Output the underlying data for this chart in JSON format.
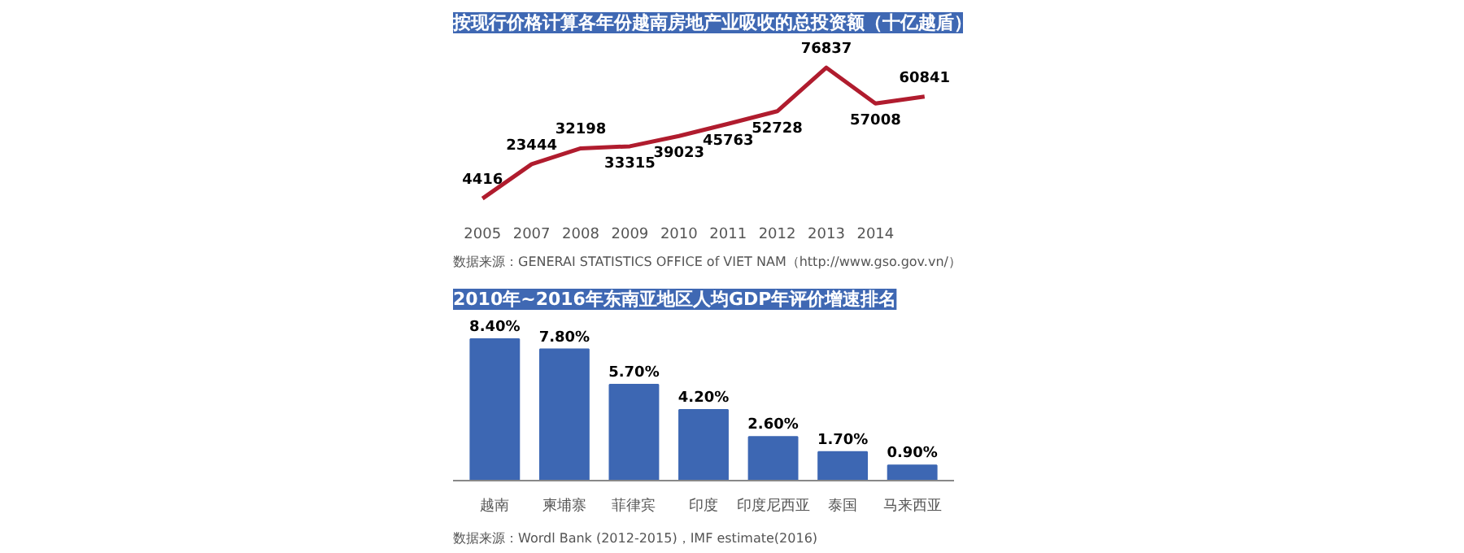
{
  "chart_data": [
    {
      "type": "line",
      "title": "按现行价格计算各年份越南房地产业吸收的总投资额（十亿越盾）",
      "categories": [
        "2005",
        "2007",
        "2008",
        "2009",
        "2010",
        "2011",
        "2012",
        "2013",
        "2014",
        null
      ],
      "series": [
        {
          "color": "#b01c2e",
          "values": [
            4416,
            23444,
            32198,
            33315,
            39023,
            45763,
            52728,
            76837,
            57008,
            60841
          ]
        }
      ],
      "data_labels": true,
      "tick_labels": "x",
      "marker": "none",
      "line_style": "solid",
      "annotations": [
        "数据来源：GENERAI STATISTICS OFFICE of  VIET NAM（http://www.gso.gov.vn/）"
      ]
    },
    {
      "type": "bar",
      "title": "2010年~2016年东南亚地区人均GDP年评价增速排名",
      "categories": [
        "越南",
        "柬埔寨",
        "菲律宾",
        "印度",
        "印度尼西亚",
        "泰国",
        "马来西亚"
      ],
      "series": [
        {
          "color": "#3d67b3",
          "values": [
            8.4,
            7.8,
            5.7,
            4.2,
            2.6,
            1.7,
            0.9
          ],
          "value_labels": [
            "8.40%",
            "7.80%",
            "5.70%",
            "4.20%",
            "2.60%",
            "1.70%",
            "0.90%"
          ]
        }
      ],
      "tick_labels": "x",
      "annotations": [
        "数据来源：Wordl Bank (2012-2015)，IMF estimate(2016)"
      ]
    }
  ]
}
